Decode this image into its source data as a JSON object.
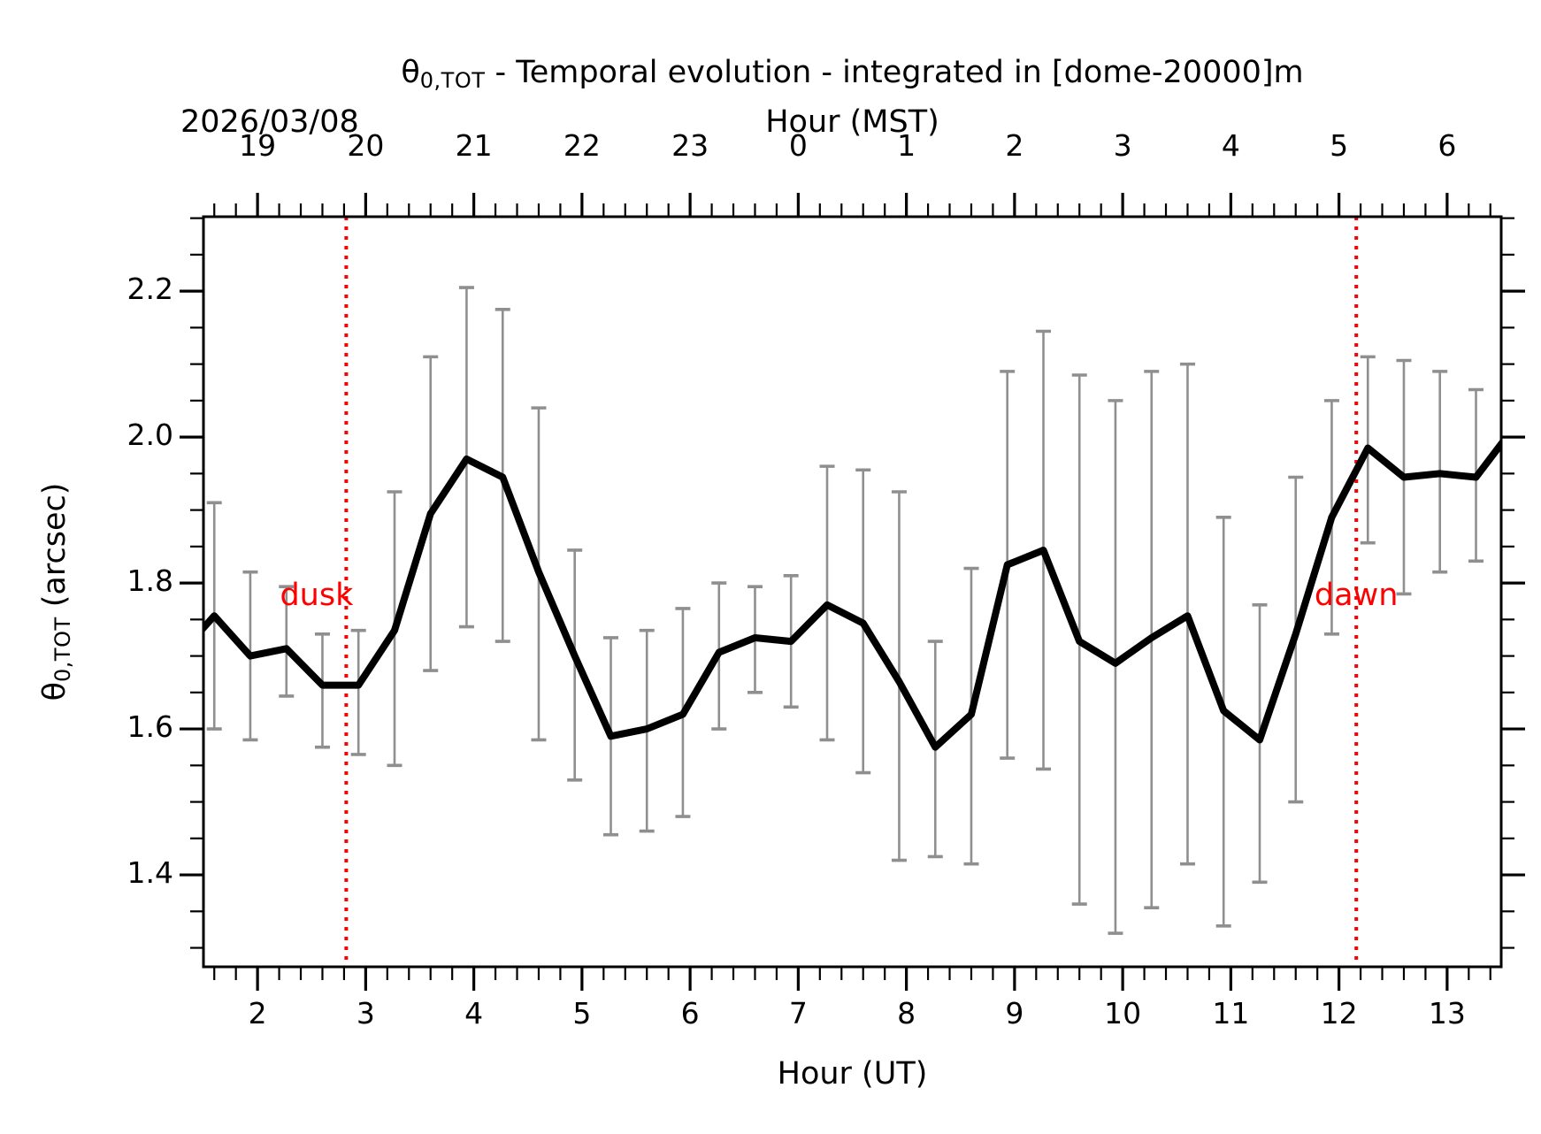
{
  "title": {
    "symbol": "θ",
    "subscript": "0,TOT",
    "text": " - Temporal evolution - integrated in [dome-20000]m"
  },
  "date_label": "2026/03/08",
  "axes": {
    "top": {
      "label": "Hour (MST)",
      "tick_labels": [
        "19",
        "20",
        "21",
        "22",
        "23",
        "0",
        "1",
        "2",
        "3",
        "4",
        "5",
        "6"
      ]
    },
    "bottom": {
      "label": "Hour (UT)",
      "tick_labels": [
        "2",
        "3",
        "4",
        "5",
        "6",
        "7",
        "8",
        "9",
        "10",
        "11",
        "12",
        "13"
      ],
      "tick_values": [
        2,
        3,
        4,
        5,
        6,
        7,
        8,
        9,
        10,
        11,
        12,
        13
      ]
    },
    "left": {
      "symbol": "θ",
      "subscript": "0,TOT",
      "unit": " (arcsec)",
      "tick_labels": [
        "2.2",
        "2.0",
        "1.8",
        "1.6",
        "1.4"
      ],
      "tick_values": [
        2.2,
        2.0,
        1.8,
        1.6,
        1.4
      ]
    }
  },
  "annotations": {
    "dusk": {
      "label": "dusk",
      "hour": 2.82
    },
    "dawn": {
      "label": "dawn",
      "hour": 12.16
    },
    "color": "#ff0000"
  },
  "chart_data": {
    "type": "line",
    "title": "θ0,TOT - Temporal evolution - integrated in [dome-20000]m",
    "xlabel": "Hour (UT)",
    "top_xlabel": "Hour (MST)",
    "ylabel": "θ0,TOT (arcsec)",
    "xlim": [
      1.5,
      13.5
    ],
    "ylim": [
      1.274,
      2.302
    ],
    "x_major_tick_step": 1,
    "x_minor_tick_step": 0.2,
    "y_major_tick_step": 0.2,
    "y_minor_tick_step": 0.05,
    "grid": false,
    "legend": false,
    "line_color": "#000000",
    "error_bar_color": "#8f8f8f",
    "x": [
      1.267,
      1.6,
      1.933,
      2.267,
      2.6,
      2.933,
      3.267,
      3.6,
      3.933,
      4.267,
      4.6,
      4.933,
      5.267,
      5.6,
      5.933,
      6.267,
      6.6,
      6.933,
      7.267,
      7.6,
      7.933,
      8.267,
      8.6,
      8.933,
      9.267,
      9.6,
      9.933,
      10.267,
      10.6,
      10.933,
      11.267,
      11.6,
      11.933,
      12.267,
      12.6,
      12.933,
      13.267,
      13.6
    ],
    "y": [
      1.7,
      1.755,
      1.7,
      1.71,
      1.66,
      1.66,
      1.735,
      1.895,
      1.97,
      1.945,
      1.815,
      1.7,
      1.59,
      1.6,
      1.62,
      1.705,
      1.725,
      1.72,
      1.77,
      1.745,
      1.665,
      1.575,
      1.62,
      1.825,
      1.845,
      1.72,
      1.69,
      1.725,
      1.755,
      1.625,
      1.585,
      1.73,
      1.89,
      1.985,
      1.945,
      1.95,
      1.945,
      2.01
    ],
    "err_lo": [
      null,
      1.6,
      1.585,
      1.645,
      1.575,
      1.565,
      1.55,
      1.68,
      1.74,
      1.72,
      1.585,
      1.53,
      1.455,
      1.46,
      1.48,
      1.6,
      1.65,
      1.63,
      1.585,
      1.54,
      1.42,
      1.425,
      1.415,
      1.56,
      1.545,
      1.36,
      1.32,
      1.355,
      1.415,
      1.33,
      1.39,
      1.5,
      1.73,
      1.855,
      1.785,
      1.815,
      1.83,
      1.92
    ],
    "err_hi": [
      null,
      1.91,
      1.815,
      1.795,
      1.73,
      1.735,
      1.925,
      2.11,
      2.205,
      2.175,
      2.04,
      1.845,
      1.725,
      1.735,
      1.765,
      1.8,
      1.795,
      1.81,
      1.96,
      1.955,
      1.925,
      1.72,
      1.82,
      2.09,
      2.145,
      2.085,
      2.05,
      2.09,
      2.1,
      1.89,
      1.77,
      1.945,
      2.05,
      2.11,
      2.105,
      2.09,
      2.065,
      2.09
    ]
  }
}
